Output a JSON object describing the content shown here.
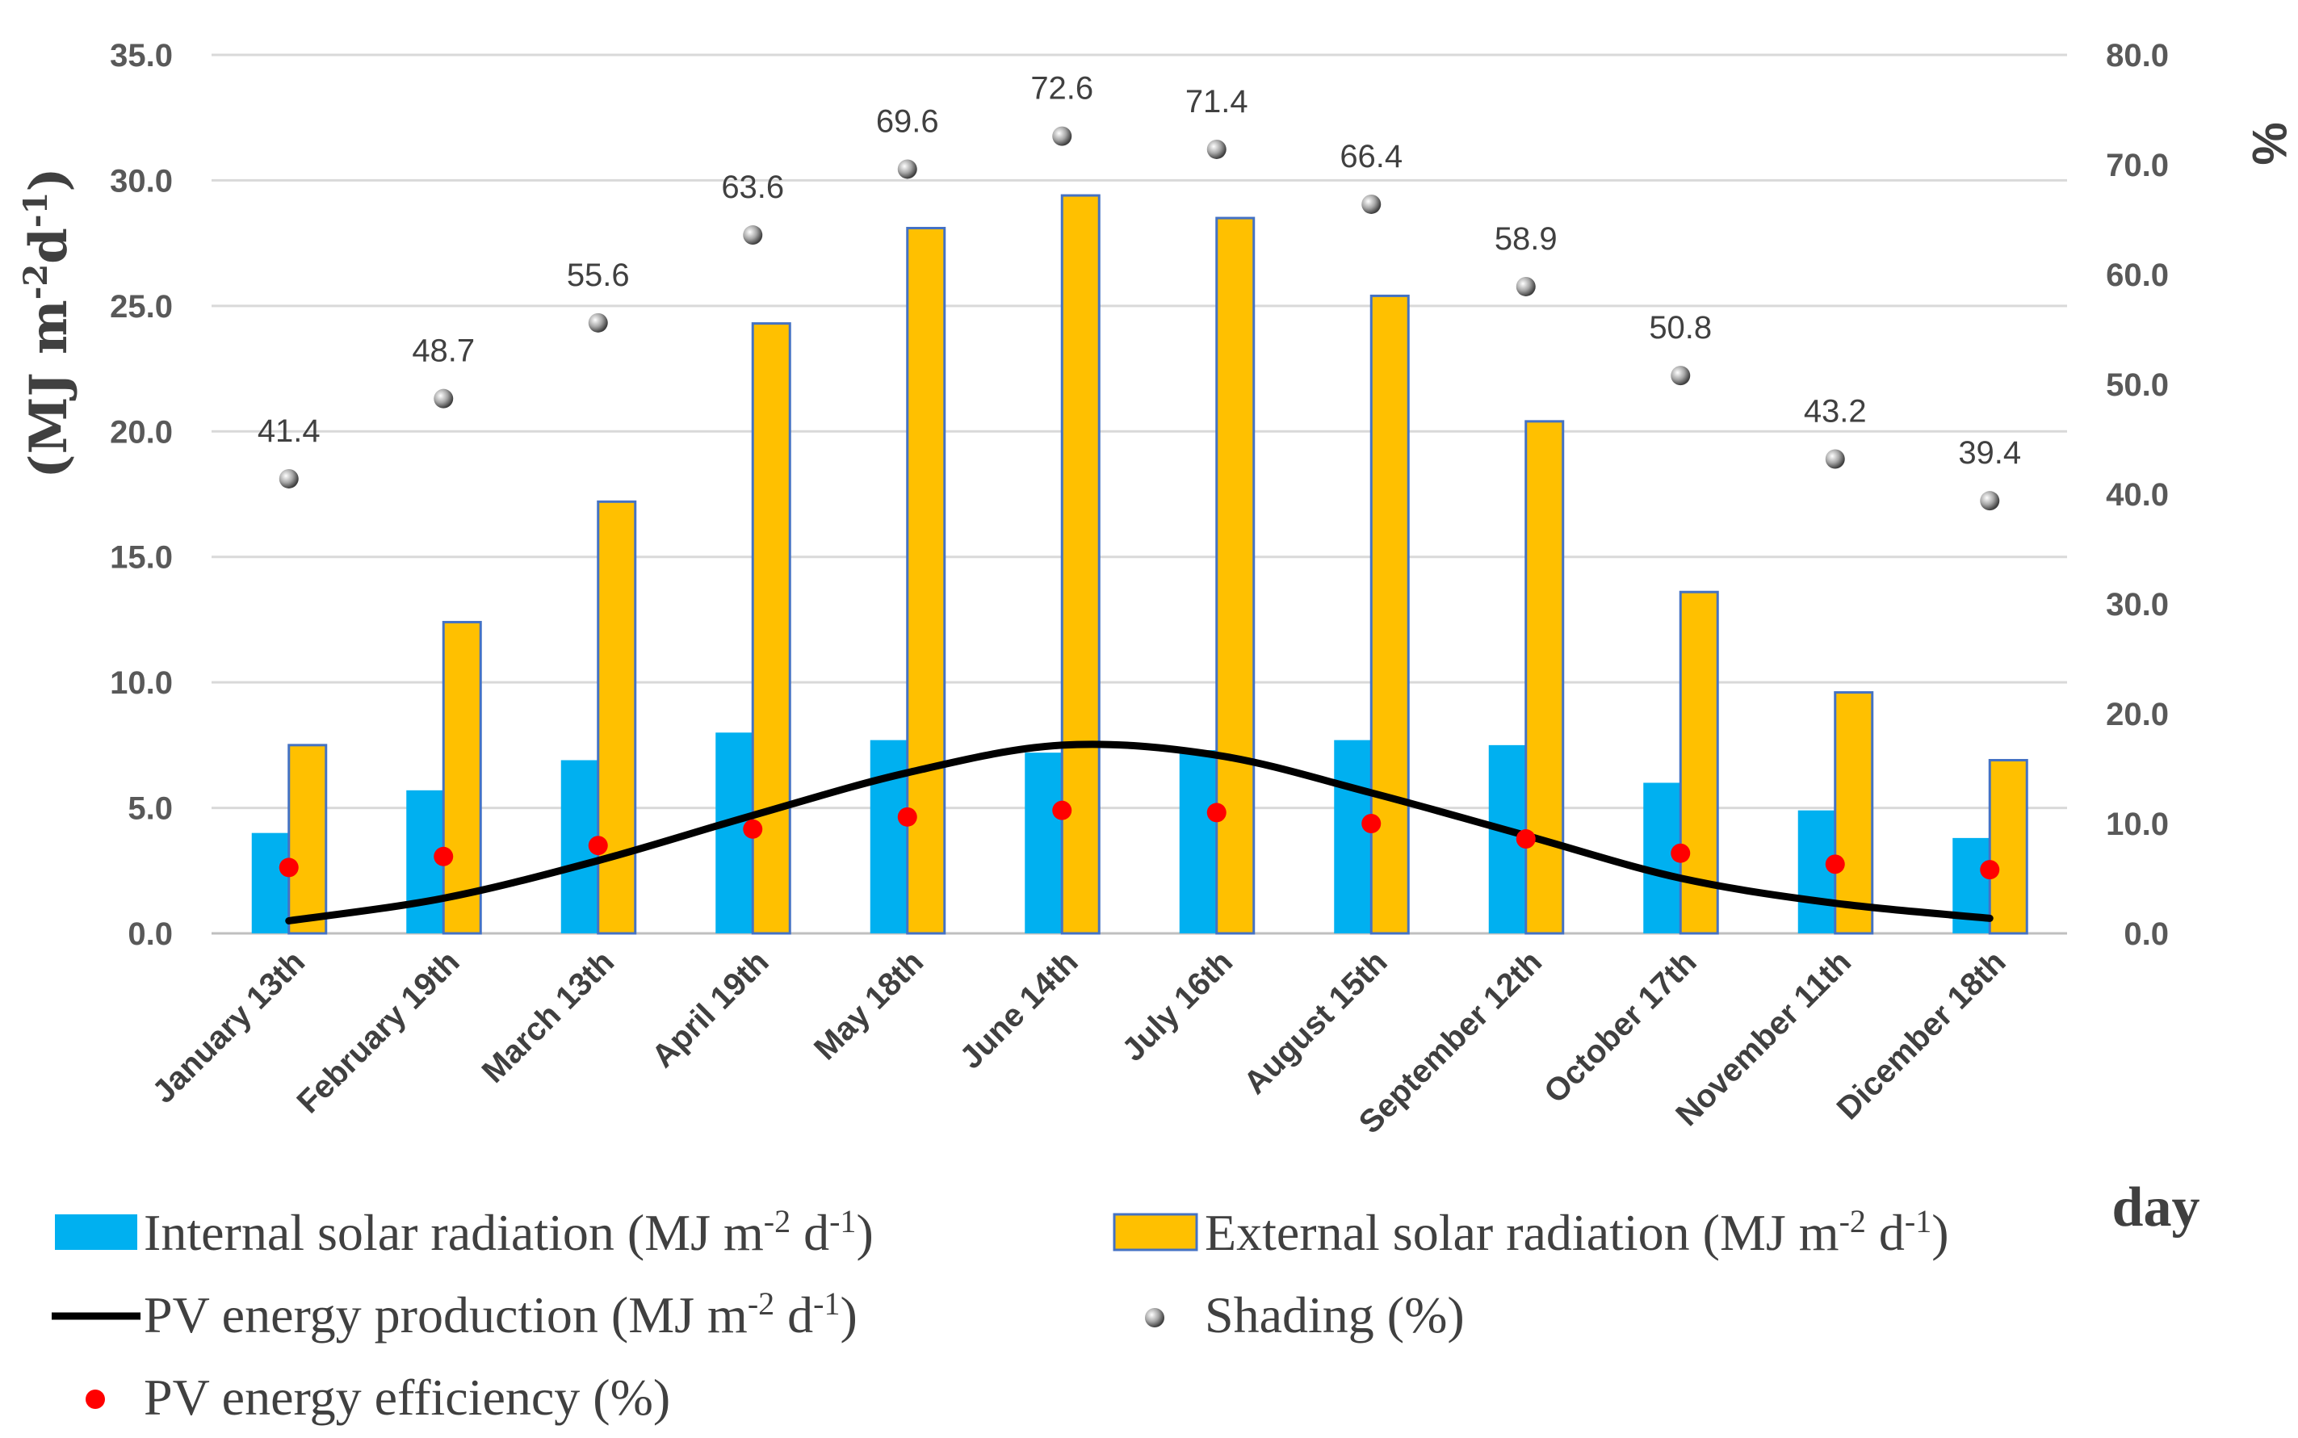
{
  "chart_data": {
    "type": "bar",
    "categories": [
      "January 13th",
      "February 19th",
      "March 13th",
      "April 19th",
      "May 18th",
      "June 14th",
      "July 16th",
      "August 15th",
      "September 12th",
      "October 17th",
      "November 11th",
      "Dicember 18th"
    ],
    "series": [
      {
        "name": "Internal solar radiation (MJ m-2 d-1)",
        "type": "bar",
        "axis": "left",
        "color": "#00B0F0",
        "values": [
          4.0,
          5.7,
          6.9,
          8.0,
          7.7,
          7.2,
          7.3,
          7.7,
          7.5,
          6.0,
          4.9,
          3.8
        ]
      },
      {
        "name": "External solar radiation (MJ m-2 d-1)",
        "type": "bar",
        "axis": "left",
        "color": "#FFC000",
        "border": "#4472C4",
        "values": [
          7.5,
          12.4,
          17.2,
          24.3,
          28.1,
          29.4,
          28.5,
          25.4,
          20.4,
          13.6,
          9.6,
          6.9
        ]
      },
      {
        "name": "PV energy production (MJ m-2 d-1)",
        "type": "line",
        "axis": "left",
        "color": "#000000",
        "values": [
          0.5,
          1.4,
          2.9,
          4.7,
          6.4,
          7.5,
          7.1,
          5.6,
          3.9,
          2.2,
          1.2,
          0.6
        ]
      },
      {
        "name": "Shading (%)",
        "type": "scatter",
        "axis": "right",
        "color": "#808080",
        "values": [
          41.4,
          48.7,
          55.6,
          63.6,
          69.6,
          72.6,
          71.4,
          66.4,
          58.9,
          50.8,
          43.2,
          39.4
        ],
        "labels": [
          "41.4",
          "48.7",
          "55.6",
          "63.6",
          "69.6",
          "72.6",
          "71.4",
          "66.4",
          "58.9",
          "50.8",
          "43.2",
          "39.4"
        ]
      },
      {
        "name": "PV energy efficiency (%)",
        "type": "scatter",
        "axis": "right",
        "color": "#FF0000",
        "values": [
          6.0,
          7.0,
          8.0,
          9.5,
          10.6,
          11.2,
          11.0,
          10.0,
          8.6,
          7.3,
          6.3,
          5.8
        ]
      }
    ],
    "y_left": {
      "min": 0,
      "max": 35,
      "ticks": [
        "0.0",
        "5.0",
        "10.0",
        "15.0",
        "20.0",
        "25.0",
        "30.0",
        "35.0"
      ]
    },
    "y_right": {
      "min": 0,
      "max": 80,
      "ticks": [
        "0.0",
        "10.0",
        "20.0",
        "30.0",
        "40.0",
        "50.0",
        "60.0",
        "70.0",
        "80.0"
      ]
    },
    "ylabel_left": {
      "main": "(MJ m",
      "sup1": "-2",
      "mid": "d",
      "sup2": "-1",
      "end": ")"
    },
    "ylabel_right": "%",
    "xlabel": "day",
    "grid": true,
    "legend_position": "bottom",
    "legend": [
      {
        "text": "Internal solar radiation (MJ m",
        "sup1": "-2",
        "mid": " d",
        "sup2": "-1",
        "end": ")"
      },
      {
        "text": "External solar radiation (MJ m",
        "sup1": "-2",
        "mid": " d",
        "sup2": "-1",
        "end": ")"
      },
      {
        "text": "PV energy production (MJ m",
        "sup1": "-2",
        "mid": " d",
        "sup2": "-1",
        "end": ")"
      },
      {
        "text": "Shading (%)"
      },
      {
        "text": "PV energy efficiency (%)"
      }
    ]
  }
}
